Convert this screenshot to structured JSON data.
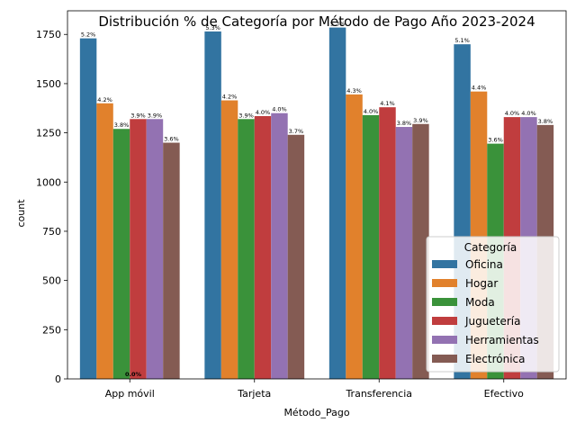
{
  "chart_data": {
    "type": "bar",
    "title": "Distribución % de Categoría por Método de Pago Año 2023-2024",
    "xlabel": "Método_Pago",
    "ylabel": "count",
    "categories": [
      "App móvil",
      "Tarjeta",
      "Transferencia",
      "Efectivo"
    ],
    "ylim": [
      0,
      1870
    ],
    "yticks": [
      0,
      250,
      500,
      750,
      1000,
      1250,
      1500,
      1750
    ],
    "legend_title": "Categoría",
    "legend_position": "lower-right",
    "grid": false,
    "series": [
      {
        "name": "Oficina",
        "color": "#3274a1",
        "values": [
          1730,
          1765,
          1785,
          1700
        ],
        "labels": [
          "5.2%",
          "5.3%",
          "5.3%",
          "5.1%"
        ]
      },
      {
        "name": "Hogar",
        "color": "#e1812c",
        "values": [
          1400,
          1415,
          1445,
          1460
        ],
        "labels": [
          "4.2%",
          "4.2%",
          "4.3%",
          "4.4%"
        ]
      },
      {
        "name": "Moda",
        "color": "#3a923a",
        "values": [
          1270,
          1320,
          1340,
          1195
        ],
        "labels": [
          "3.8%",
          "3.9%",
          "4.0%",
          "3.6%"
        ]
      },
      {
        "name": "Juguetería",
        "color": "#c03d3e",
        "values": [
          1320,
          1335,
          1380,
          1330
        ],
        "labels": [
          "3.9%",
          "4.0%",
          "4.1%",
          "4.0%"
        ]
      },
      {
        "name": "Herramientas",
        "color": "#9372b2",
        "values": [
          1320,
          1350,
          1280,
          1330
        ],
        "labels": [
          "3.9%",
          "4.0%",
          "3.8%",
          "4.0%"
        ]
      },
      {
        "name": "Electrónica",
        "color": "#845b53",
        "values": [
          1200,
          1240,
          1295,
          1290
        ],
        "labels": [
          "3.6%",
          "3.7%",
          "3.9%",
          "3.8%"
        ]
      }
    ],
    "annotations": [
      "0.0%"
    ]
  }
}
